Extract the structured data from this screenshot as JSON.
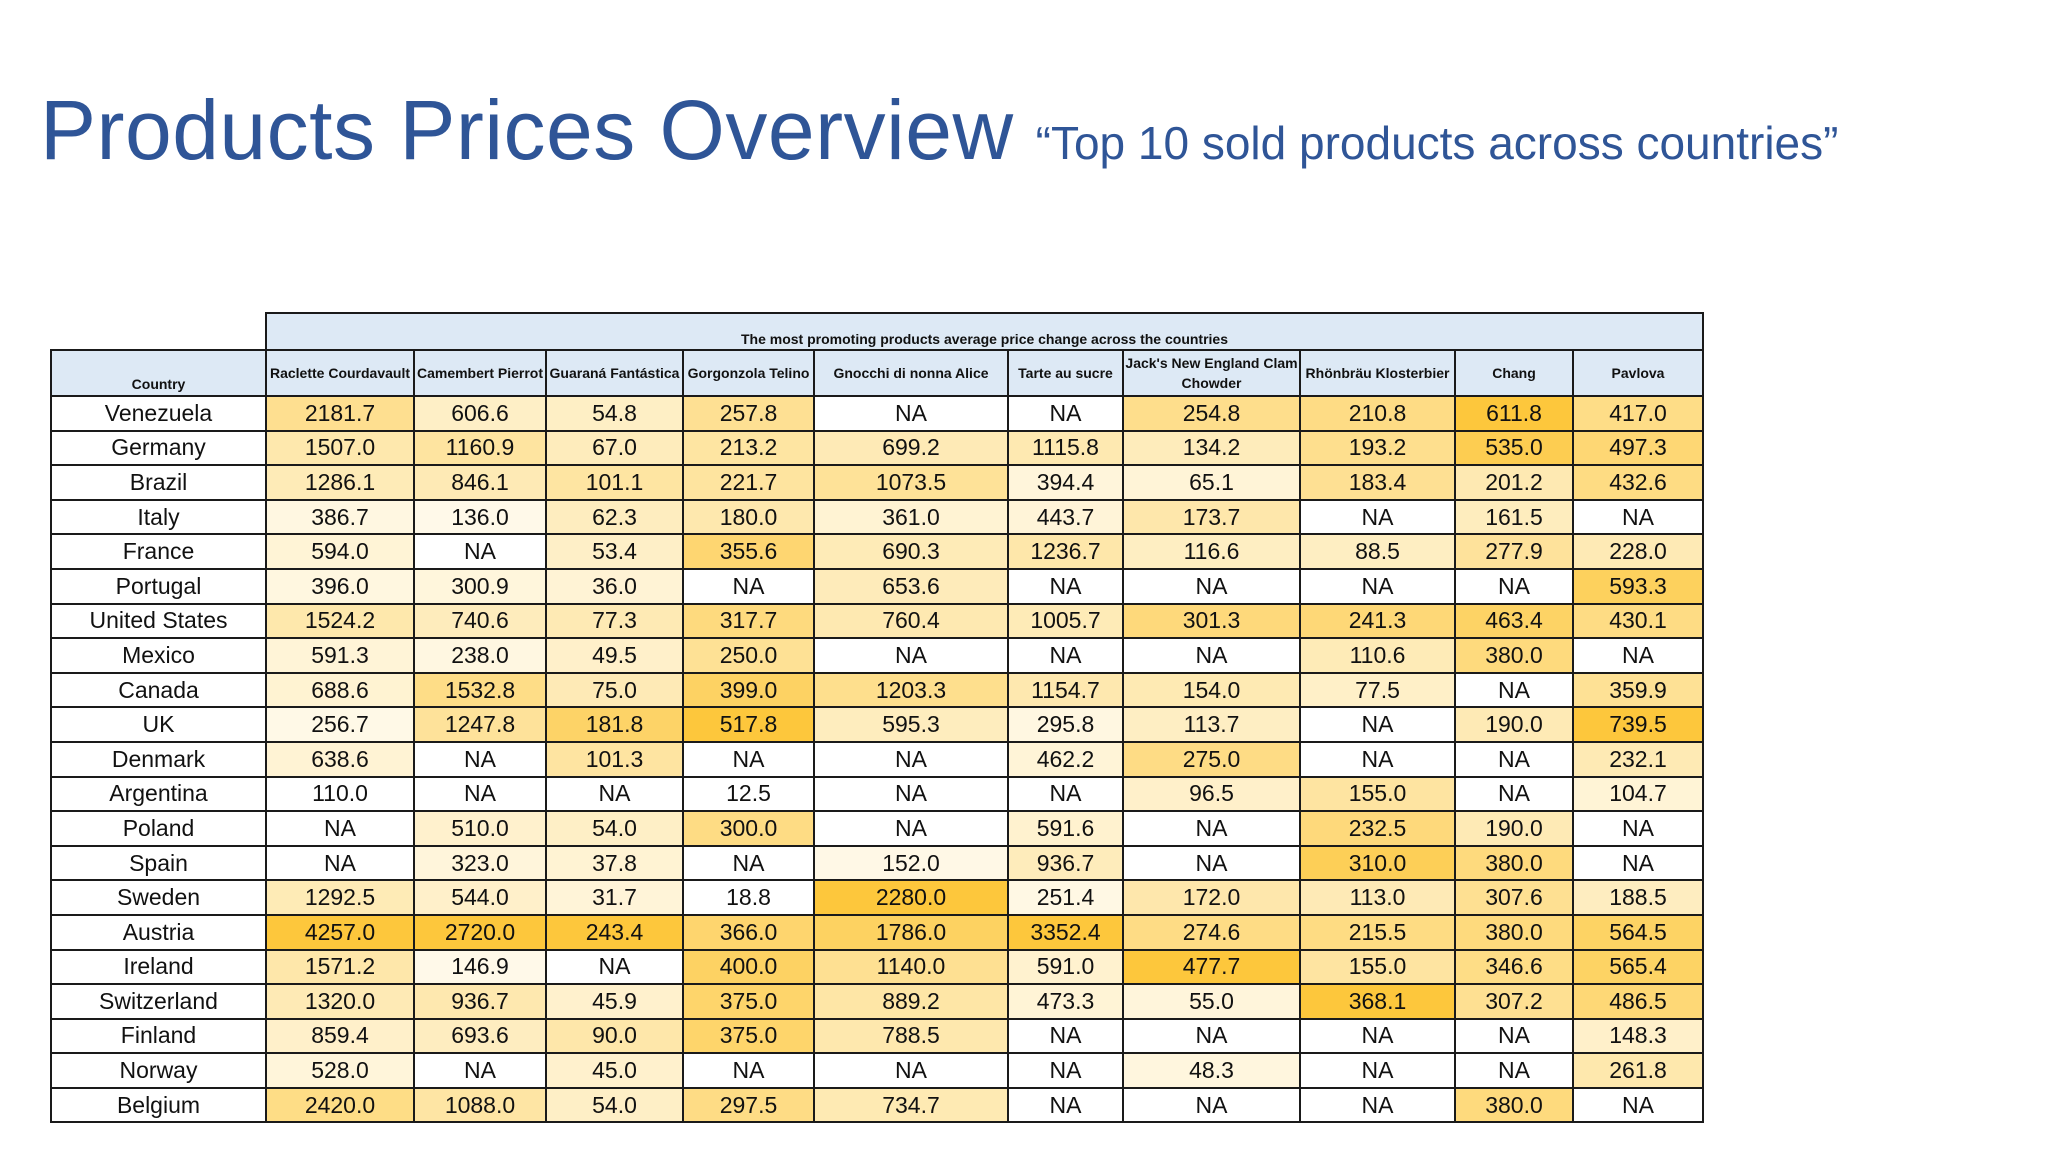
{
  "title": "Products Prices Overview",
  "subtitle": "“Top 10 sold products across countries”",
  "table": {
    "group_header": "The most promoting products average price change across the countries",
    "country_header": "Country",
    "products": [
      "Raclette Courdavault",
      "Camembert Pierrot",
      "Guaraná Fantástica",
      "Gorgonzola Telino",
      "Gnocchi di nonna Alice",
      "Tarte au sucre",
      "Jack's New England Clam Chowder",
      "Rhönbräu Klosterbier",
      "Chang",
      "Pavlova"
    ],
    "rows": [
      {
        "country": "Venezuela",
        "values": [
          "2181.7",
          "606.6",
          "54.8",
          "257.8",
          "NA",
          "NA",
          "254.8",
          "210.8",
          "611.8",
          "417.0"
        ]
      },
      {
        "country": "Germany",
        "values": [
          "1507.0",
          "1160.9",
          "67.0",
          "213.2",
          "699.2",
          "1115.8",
          "134.2",
          "193.2",
          "535.0",
          "497.3"
        ]
      },
      {
        "country": "Brazil",
        "values": [
          "1286.1",
          "846.1",
          "101.1",
          "221.7",
          "1073.5",
          "394.4",
          "65.1",
          "183.4",
          "201.2",
          "432.6"
        ]
      },
      {
        "country": "Italy",
        "values": [
          "386.7",
          "136.0",
          "62.3",
          "180.0",
          "361.0",
          "443.7",
          "173.7",
          "NA",
          "161.5",
          "NA"
        ]
      },
      {
        "country": "France",
        "values": [
          "594.0",
          "NA",
          "53.4",
          "355.6",
          "690.3",
          "1236.7",
          "116.6",
          "88.5",
          "277.9",
          "228.0"
        ]
      },
      {
        "country": "Portugal",
        "values": [
          "396.0",
          "300.9",
          "36.0",
          "NA",
          "653.6",
          "NA",
          "NA",
          "NA",
          "NA",
          "593.3"
        ]
      },
      {
        "country": "United States",
        "values": [
          "1524.2",
          "740.6",
          "77.3",
          "317.7",
          "760.4",
          "1005.7",
          "301.3",
          "241.3",
          "463.4",
          "430.1"
        ]
      },
      {
        "country": "Mexico",
        "values": [
          "591.3",
          "238.0",
          "49.5",
          "250.0",
          "NA",
          "NA",
          "NA",
          "110.6",
          "380.0",
          "NA"
        ]
      },
      {
        "country": "Canada",
        "values": [
          "688.6",
          "1532.8",
          "75.0",
          "399.0",
          "1203.3",
          "1154.7",
          "154.0",
          "77.5",
          "NA",
          "359.9"
        ]
      },
      {
        "country": "UK",
        "values": [
          "256.7",
          "1247.8",
          "181.8",
          "517.8",
          "595.3",
          "295.8",
          "113.7",
          "NA",
          "190.0",
          "739.5"
        ]
      },
      {
        "country": "Denmark",
        "values": [
          "638.6",
          "NA",
          "101.3",
          "NA",
          "NA",
          "462.2",
          "275.0",
          "NA",
          "NA",
          "232.1"
        ]
      },
      {
        "country": "Argentina",
        "values": [
          "110.0",
          "NA",
          "NA",
          "12.5",
          "NA",
          "NA",
          "96.5",
          "155.0",
          "NA",
          "104.7"
        ]
      },
      {
        "country": "Poland",
        "values": [
          "NA",
          "510.0",
          "54.0",
          "300.0",
          "NA",
          "591.6",
          "NA",
          "232.5",
          "190.0",
          "NA"
        ]
      },
      {
        "country": "Spain",
        "values": [
          "NA",
          "323.0",
          "37.8",
          "NA",
          "152.0",
          "936.7",
          "NA",
          "310.0",
          "380.0",
          "NA"
        ]
      },
      {
        "country": "Sweden",
        "values": [
          "1292.5",
          "544.0",
          "31.7",
          "18.8",
          "2280.0",
          "251.4",
          "172.0",
          "113.0",
          "307.6",
          "188.5"
        ]
      },
      {
        "country": "Austria",
        "values": [
          "4257.0",
          "2720.0",
          "243.4",
          "366.0",
          "1786.0",
          "3352.4",
          "274.6",
          "215.5",
          "380.0",
          "564.5"
        ]
      },
      {
        "country": "Ireland",
        "values": [
          "1571.2",
          "146.9",
          "NA",
          "400.0",
          "1140.0",
          "591.0",
          "477.7",
          "155.0",
          "346.6",
          "565.4"
        ]
      },
      {
        "country": "Switzerland",
        "values": [
          "1320.0",
          "936.7",
          "45.9",
          "375.0",
          "889.2",
          "473.3",
          "55.0",
          "368.1",
          "307.2",
          "486.5"
        ]
      },
      {
        "country": "Finland",
        "values": [
          "859.4",
          "693.6",
          "90.0",
          "375.0",
          "788.5",
          "NA",
          "NA",
          "NA",
          "NA",
          "148.3"
        ]
      },
      {
        "country": "Norway",
        "values": [
          "528.0",
          "NA",
          "45.0",
          "NA",
          "NA",
          "NA",
          "48.3",
          "NA",
          "NA",
          "261.8"
        ]
      },
      {
        "country": "Belgium",
        "values": [
          "2420.0",
          "1088.0",
          "54.0",
          "297.5",
          "734.7",
          "NA",
          "NA",
          "NA",
          "380.0",
          "NA"
        ]
      }
    ]
  },
  "colors": {
    "title": "#2f5597",
    "header_fill": "#dde9f5",
    "heat_low": "#fffdf6",
    "heat_high": "#fdc73c",
    "border": "#1a1a1a"
  }
}
